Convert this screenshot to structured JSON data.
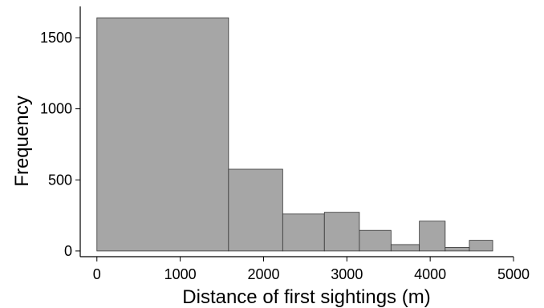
{
  "chart_data": {
    "type": "bar",
    "subtype": "histogram",
    "title": "",
    "xlabel": "Distance of first sightings (m)",
    "ylabel": "Frequency",
    "xlim": [
      -200,
      5000
    ],
    "ylim": [
      -40,
      1720
    ],
    "xticks": [
      0,
      1000,
      2000,
      3000,
      4000,
      5000
    ],
    "yticks": [
      0,
      500,
      1000,
      1500
    ],
    "grid": false,
    "bar_color": "#a6a6a6",
    "edge_color": "#333333",
    "bins": [
      {
        "start": 0,
        "end": 1580,
        "count": 1640
      },
      {
        "start": 1580,
        "end": 2230,
        "count": 575
      },
      {
        "start": 2230,
        "end": 2730,
        "count": 260
      },
      {
        "start": 2730,
        "end": 3150,
        "count": 272
      },
      {
        "start": 3150,
        "end": 3530,
        "count": 145
      },
      {
        "start": 3530,
        "end": 3870,
        "count": 45
      },
      {
        "start": 3870,
        "end": 4180,
        "count": 210
      },
      {
        "start": 4180,
        "end": 4470,
        "count": 25
      },
      {
        "start": 4470,
        "end": 4750,
        "count": 75
      }
    ]
  }
}
